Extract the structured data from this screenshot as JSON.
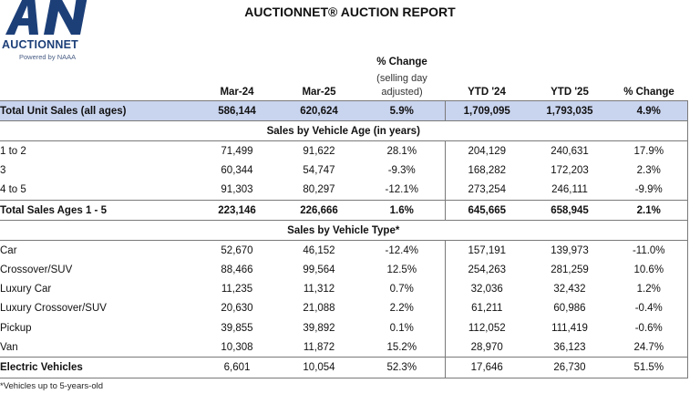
{
  "brand": {
    "logo_letters": "AN",
    "name": "AUCTIONNET",
    "tagline": "Powered by NAAA"
  },
  "title": "AUCTIONNET® AUCTION REPORT",
  "header": {
    "col_mar24": "Mar-24",
    "col_mar25": "Mar-25",
    "col_pct_change": "% Change",
    "pct_note_1": "(selling day",
    "pct_note_2": "adjusted)",
    "col_ytd24": "YTD '24",
    "col_ytd25": "YTD '25",
    "col_ytd_pct": "% Change"
  },
  "total_unit_sales": {
    "label": "Total Unit Sales (all ages)",
    "mar24": "586,144",
    "mar25": "620,624",
    "pct": "5.9%",
    "ytd24": "1,709,095",
    "ytd25": "1,793,035",
    "ytd_pct": "4.9%"
  },
  "age_section_title": "Sales by Vehicle Age (in years)",
  "age_rows": [
    {
      "label": "1 to 2",
      "mar24": "71,499",
      "mar25": "91,622",
      "pct": "28.1%",
      "ytd24": "204,129",
      "ytd25": "240,631",
      "ytd_pct": "17.9%"
    },
    {
      "label": "3",
      "mar24": "60,344",
      "mar25": "54,747",
      "pct": "-9.3%",
      "ytd24": "168,282",
      "ytd25": "172,203",
      "ytd_pct": "2.3%"
    },
    {
      "label": "4 to 5",
      "mar24": "91,303",
      "mar25": "80,297",
      "pct": "-12.1%",
      "ytd24": "273,254",
      "ytd25": "246,111",
      "ytd_pct": "-9.9%"
    }
  ],
  "total_ages": {
    "label": "Total Sales Ages 1 - 5",
    "mar24": "223,146",
    "mar25": "226,666",
    "pct": "1.6%",
    "ytd24": "645,665",
    "ytd25": "658,945",
    "ytd_pct": "2.1%"
  },
  "type_section_title": "Sales by Vehicle Type*",
  "type_rows": [
    {
      "label": "Car",
      "mar24": "52,670",
      "mar25": "46,152",
      "pct": "-12.4%",
      "ytd24": "157,191",
      "ytd25": "139,973",
      "ytd_pct": "-11.0%"
    },
    {
      "label": "Crossover/SUV",
      "mar24": "88,466",
      "mar25": "99,564",
      "pct": "12.5%",
      "ytd24": "254,263",
      "ytd25": "281,259",
      "ytd_pct": "10.6%"
    },
    {
      "label": "Luxury Car",
      "mar24": "11,235",
      "mar25": "11,312",
      "pct": "0.7%",
      "ytd24": "32,036",
      "ytd25": "32,432",
      "ytd_pct": "1.2%"
    },
    {
      "label": "Luxury Crossover/SUV",
      "mar24": "20,630",
      "mar25": "21,088",
      "pct": "2.2%",
      "ytd24": "61,211",
      "ytd25": "60,986",
      "ytd_pct": "-0.4%"
    },
    {
      "label": "Pickup",
      "mar24": "39,855",
      "mar25": "39,892",
      "pct": "0.1%",
      "ytd24": "112,052",
      "ytd25": "111,419",
      "ytd_pct": "-0.6%"
    },
    {
      "label": "Van",
      "mar24": "10,308",
      "mar25": "11,872",
      "pct": "15.2%",
      "ytd24": "28,970",
      "ytd25": "36,123",
      "ytd_pct": "24.7%"
    }
  ],
  "electric": {
    "label": "Electric Vehicles",
    "mar24": "6,601",
    "mar25": "10,054",
    "pct": "52.3%",
    "ytd24": "17,646",
    "ytd25": "26,730",
    "ytd_pct": "51.5%"
  },
  "footnote": "*Vehicles up to 5-years-old",
  "colors": {
    "highlight": "#c9d4ee",
    "brand": "#1c3f78"
  }
}
